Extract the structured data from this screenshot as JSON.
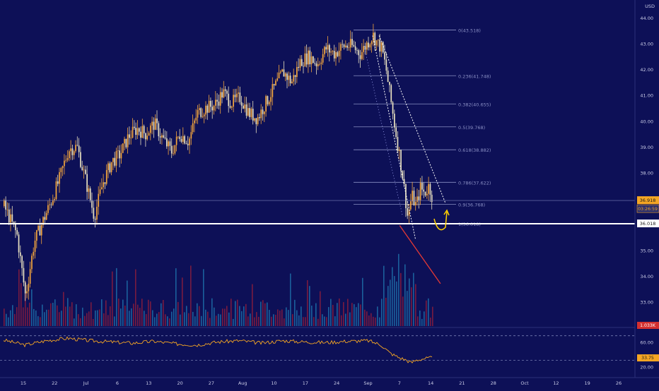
{
  "colors": {
    "background": "#0d1057",
    "up_candle": "#f5a63c",
    "down_candle": "#e8e0c0",
    "axis_text": "#c9cbe6",
    "support_line": "#ffffff",
    "fib_line": "#8a8fc4",
    "price_tag": "#f5a623",
    "support_tag": "#ffffff",
    "volume_up": "#1f6ea8",
    "volume_down": "#8c1d3c",
    "volume_tag": "#d32f2f",
    "downtrend_arrow": "#e53935",
    "bounce_arrow": "#ffd000",
    "oscillator_line": "#f5a623"
  },
  "chart_data": {
    "type": "candlestick",
    "currency_label": "USD",
    "y_ticks": [
      44.0,
      43.0,
      42.0,
      41.0,
      40.0,
      39.0,
      38.0,
      35.0,
      34.0,
      33.0
    ],
    "y_range": [
      32.25,
      44.35
    ],
    "x_labels": [
      "15",
      "22",
      "Jul",
      "6",
      "13",
      "20",
      "27",
      "Aug",
      "10",
      "17",
      "24",
      "Sep",
      "7",
      "14",
      "21",
      "28",
      "Oct",
      "12",
      "19",
      "26"
    ],
    "close_path": [
      [
        0,
        36.7
      ],
      [
        3,
        35.6
      ],
      [
        5,
        33.2
      ],
      [
        7,
        35.3
      ],
      [
        9,
        36.1
      ],
      [
        11,
        36.9
      ],
      [
        13,
        37.8
      ],
      [
        15,
        38.9
      ],
      [
        17,
        39.0
      ],
      [
        19,
        37.7
      ],
      [
        21,
        36.3
      ],
      [
        23,
        37.6
      ],
      [
        25,
        38.4
      ],
      [
        27,
        38.7
      ],
      [
        29,
        39.4
      ],
      [
        31,
        39.7
      ],
      [
        33,
        39.5
      ],
      [
        35,
        39.9
      ],
      [
        37,
        39.3
      ],
      [
        39,
        38.8
      ],
      [
        41,
        39.5
      ],
      [
        43,
        39.2
      ],
      [
        45,
        40.3
      ],
      [
        47,
        40.5
      ],
      [
        49,
        40.6
      ],
      [
        51,
        41.1
      ],
      [
        53,
        40.7
      ],
      [
        55,
        40.9
      ],
      [
        57,
        40.3
      ],
      [
        59,
        40.1
      ],
      [
        61,
        40.7
      ],
      [
        63,
        41.3
      ],
      [
        65,
        41.9
      ],
      [
        67,
        41.5
      ],
      [
        69,
        42.3
      ],
      [
        71,
        42.5
      ],
      [
        73,
        42.2
      ],
      [
        75,
        42.8
      ],
      [
        77,
        42.6
      ],
      [
        79,
        42.9
      ],
      [
        81,
        42.9
      ],
      [
        83,
        42.6
      ],
      [
        85,
        43.1
      ],
      [
        86,
        43.3
      ],
      [
        87,
        43.0
      ],
      [
        88,
        42.8
      ],
      [
        89,
        42.0
      ],
      [
        90,
        40.9
      ],
      [
        91,
        39.8
      ],
      [
        92,
        38.8
      ],
      [
        93,
        37.7
      ],
      [
        94,
        36.3
      ],
      [
        95,
        37.1
      ],
      [
        96,
        36.7
      ],
      [
        97,
        37.4
      ],
      [
        98,
        37.2
      ],
      [
        99,
        37.5
      ],
      [
        100,
        36.9
      ]
    ],
    "x_path_range": [
      0,
      100
    ],
    "fib_levels": [
      {
        "label": "0(43.518)",
        "value": 43.518
      },
      {
        "label": "0.236(41.748)",
        "value": 41.748
      },
      {
        "label": "0.382(40.655)",
        "value": 40.655
      },
      {
        "label": "0.5(39.768)",
        "value": 39.768
      },
      {
        "label": "0.618(38.882)",
        "value": 38.882
      },
      {
        "label": "0.786(37.622)",
        "value": 37.622
      },
      {
        "label": "0.9(36.768)",
        "value": 36.768
      },
      {
        "label": "1(36.018)",
        "value": 36.018
      }
    ],
    "current_price": {
      "value": 36.918,
      "label": "36.918",
      "countdown": "03:26:59"
    },
    "support_level": {
      "value": 36.018,
      "label": "36.018"
    },
    "volume_tag": "1.033K",
    "oscillator": {
      "ticks": [
        60.0,
        20.0
      ],
      "tick_labels": [
        "60.00",
        "20.00"
      ],
      "current_label": "33.75",
      "range": [
        10,
        80
      ],
      "upper_band": 70,
      "lower_band": 30,
      "path": [
        [
          0,
          63
        ],
        [
          5,
          55
        ],
        [
          10,
          62
        ],
        [
          15,
          66
        ],
        [
          20,
          62
        ],
        [
          25,
          60
        ],
        [
          30,
          58
        ],
        [
          35,
          61
        ],
        [
          40,
          57
        ],
        [
          45,
          55
        ],
        [
          50,
          60
        ],
        [
          55,
          62
        ],
        [
          60,
          58
        ],
        [
          65,
          62
        ],
        [
          70,
          60
        ],
        [
          75,
          59
        ],
        [
          80,
          61
        ],
        [
          85,
          62
        ],
        [
          88,
          55
        ],
        [
          90,
          42
        ],
        [
          92,
          35
        ],
        [
          94,
          30
        ],
        [
          95,
          26
        ],
        [
          96,
          30
        ],
        [
          98,
          33
        ],
        [
          100,
          34
        ]
      ]
    }
  }
}
